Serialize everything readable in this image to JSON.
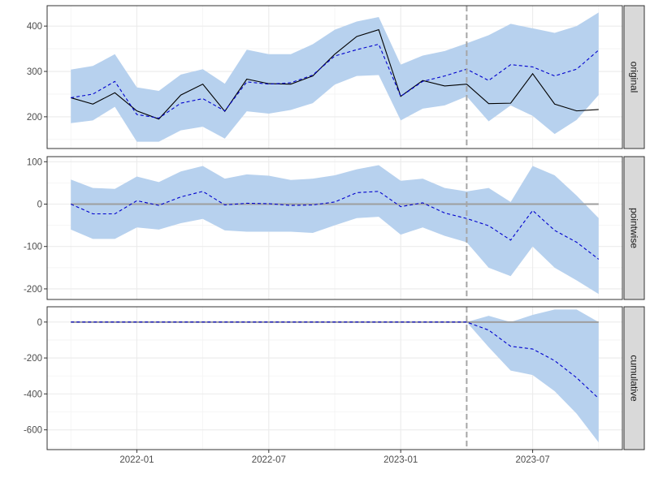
{
  "chart_data": {
    "type": "line",
    "title": "",
    "xlabel": "",
    "ylabel": "",
    "x": [
      "2021-10",
      "2021-11",
      "2021-12",
      "2022-01",
      "2022-02",
      "2022-03",
      "2022-04",
      "2022-05",
      "2022-06",
      "2022-07",
      "2022-08",
      "2022-09",
      "2022-10",
      "2022-11",
      "2022-12",
      "2023-01",
      "2023-02",
      "2023-03",
      "2023-04",
      "2023-05",
      "2023-06",
      "2023-07",
      "2023-08",
      "2023-09",
      "2023-10"
    ],
    "x_ticks": [
      "2022-01",
      "2022-07",
      "2023-01",
      "2023-07"
    ],
    "intervention": "2023-04",
    "colors": {
      "band": "#b7d1ee",
      "predicted": "#0000cd",
      "observed": "#000000",
      "zero_line": "#9e9e9e",
      "intervention_line": "#a6a6a6",
      "grid": "#ebebeb",
      "strip_fill": "#d9d9d9",
      "panel_border": "#333333"
    },
    "panels": [
      {
        "strip_label": "original",
        "ylim": [
          130,
          445
        ],
        "y_ticks": [
          200,
          300,
          400
        ],
        "zero_line": false,
        "series": [
          {
            "role": "observed",
            "style": "solid",
            "values": [
              242,
              228,
              253,
              213,
              195,
              248,
              272,
              212,
              283,
              273,
              272,
              290,
              338,
              377,
              392,
              245,
              280,
              268,
              272,
              229,
              230,
              295,
              228,
              213,
              216
            ]
          },
          {
            "role": "predicted",
            "style": "dashed",
            "values": [
              242,
              250,
              278,
              205,
              197,
              230,
              240,
              213,
              277,
              272,
              275,
              292,
              334,
              348,
              360,
              245,
              278,
              290,
              305,
              280,
              315,
              310,
              290,
              305,
              347
            ]
          }
        ],
        "band": {
          "lower": [
            186,
            192,
            222,
            145,
            145,
            170,
            178,
            152,
            212,
            207,
            215,
            230,
            271,
            290,
            292,
            192,
            218,
            225,
            245,
            190,
            225,
            202,
            162,
            193,
            248
          ],
          "upper": [
            304,
            312,
            338,
            265,
            257,
            293,
            305,
            273,
            348,
            338,
            338,
            360,
            392,
            410,
            420,
            315,
            335,
            345,
            362,
            380,
            405,
            395,
            385,
            400,
            430
          ]
        }
      },
      {
        "strip_label": "pointwise",
        "ylim": [
          -225,
          112
        ],
        "y_ticks": [
          -200,
          -100,
          0,
          100
        ],
        "zero_line": true,
        "series": [
          {
            "role": "predicted",
            "style": "dashed",
            "values": [
              0,
              -23,
              -23,
              8,
              -3,
              17,
              30,
              -2,
              2,
              1,
              -3,
              -2,
              5,
              27,
              30,
              -6,
              3,
              -21,
              -34,
              -51,
              -85,
              -15,
              -62,
              -90,
              -130
            ]
          }
        ],
        "band": {
          "lower": [
            -60,
            -82,
            -82,
            -55,
            -60,
            -45,
            -35,
            -62,
            -65,
            -65,
            -65,
            -68,
            -50,
            -33,
            -30,
            -72,
            -55,
            -75,
            -90,
            -150,
            -170,
            -100,
            -150,
            -180,
            -212
          ],
          "upper": [
            58,
            38,
            36,
            65,
            52,
            77,
            90,
            60,
            70,
            67,
            57,
            60,
            68,
            82,
            92,
            55,
            60,
            38,
            30,
            38,
            5,
            90,
            68,
            20,
            -33
          ]
        }
      },
      {
        "strip_label": "cumulative",
        "ylim": [
          -710,
          85
        ],
        "y_ticks": [
          -600,
          -400,
          -200,
          0
        ],
        "zero_line": true,
        "series": [
          {
            "role": "predicted",
            "style": "dashed",
            "values": [
              0,
              0,
              0,
              0,
              0,
              0,
              0,
              0,
              0,
              0,
              0,
              0,
              0,
              0,
              0,
              0,
              0,
              0,
              0,
              -45,
              -135,
              -150,
              -215,
              -310,
              -425
            ]
          }
        ],
        "band": {
          "lower": [
            0,
            0,
            0,
            0,
            0,
            0,
            0,
            0,
            0,
            0,
            0,
            0,
            0,
            0,
            0,
            0,
            0,
            0,
            0,
            -140,
            -270,
            -295,
            -385,
            -510,
            -670
          ],
          "upper": [
            0,
            0,
            0,
            0,
            0,
            0,
            0,
            0,
            0,
            0,
            0,
            0,
            0,
            0,
            0,
            0,
            0,
            0,
            0,
            35,
            0,
            40,
            70,
            70,
            0
          ]
        }
      }
    ]
  }
}
